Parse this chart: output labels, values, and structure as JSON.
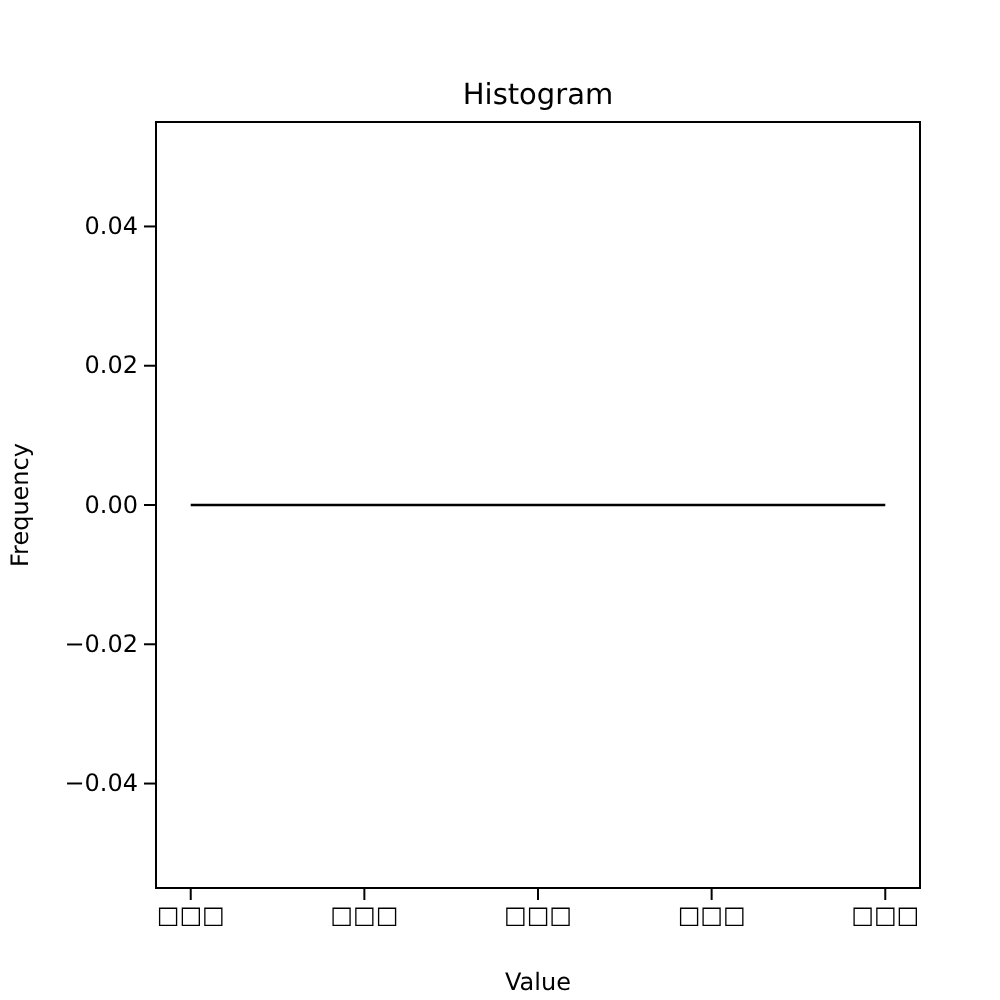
{
  "chart_data": {
    "type": "line",
    "title": "Histogram",
    "xlabel": "Value",
    "ylabel": "Frequency",
    "categories": [
      "□□□",
      "□□□",
      "□□□",
      "□□□",
      "□□□"
    ],
    "values": [
      0,
      0,
      0,
      0,
      0
    ],
    "color": "#000000",
    "ylim": [
      -0.055,
      0.055
    ],
    "yticks": [
      {
        "value": -0.04,
        "label": "−0.04"
      },
      {
        "value": -0.02,
        "label": "−0.02"
      },
      {
        "value": 0,
        "label": "0.00"
      },
      {
        "value": 0.02,
        "label": "0.02"
      },
      {
        "value": 0.04,
        "label": "0.04"
      }
    ]
  }
}
